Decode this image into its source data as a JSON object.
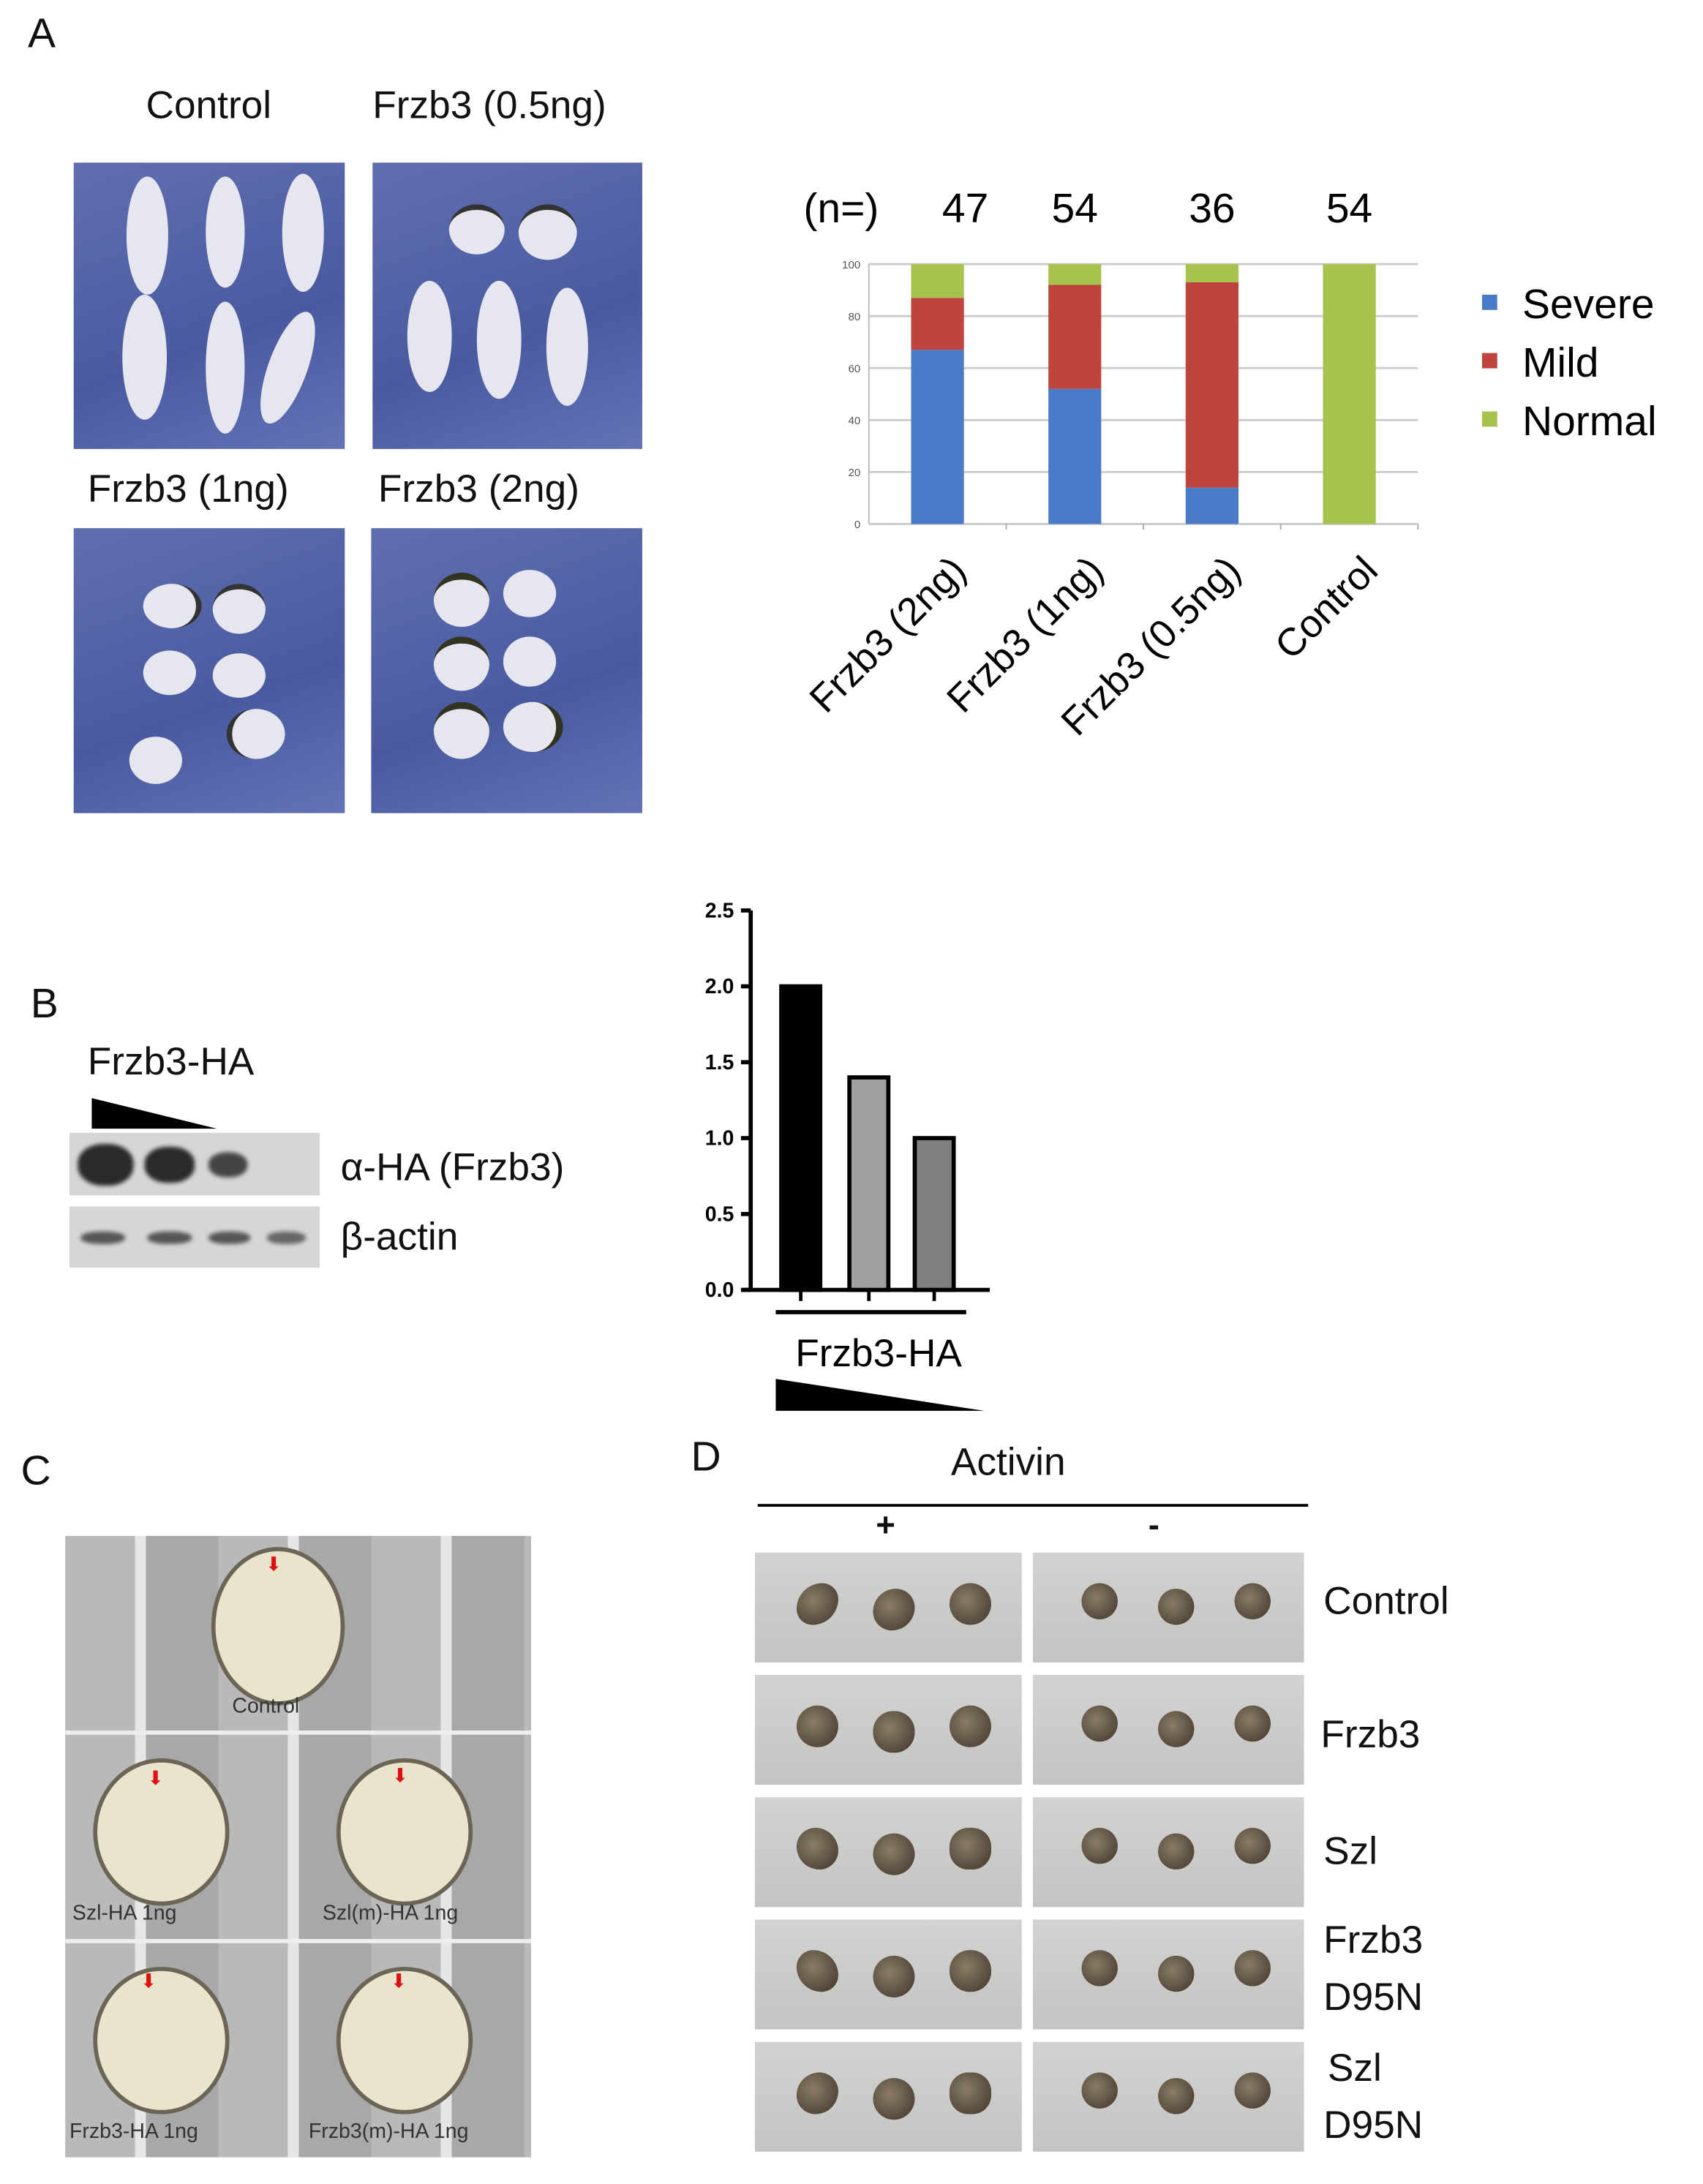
{
  "panels": {
    "a": {
      "letter": "A",
      "photo_labels": [
        "Control",
        "Frzb3 (0.5ng)",
        "Frzb3 (1ng)",
        "Frzb3 (2ng)"
      ]
    },
    "b": {
      "letter": "B",
      "blot_title": "Frzb3-HA",
      "blot_rows": [
        "α-HA (Frzb3)",
        "β-actin"
      ]
    },
    "c": {
      "letter": "C",
      "photo_labels": [
        "Control",
        "Szl-HA 1ng",
        "Szl(m)-HA 1ng",
        "Frzb3-HA 1ng",
        "Frzb3(m)-HA 1ng"
      ]
    },
    "d": {
      "letter": "D",
      "header": "Activin",
      "columns": [
        "+",
        "-"
      ],
      "rows": [
        [
          "Control"
        ],
        [
          "Frzb3"
        ],
        [
          "Szl"
        ],
        [
          "Frzb3",
          "D95N"
        ],
        [
          "Szl",
          "D95N"
        ]
      ]
    }
  },
  "chart_data": [
    {
      "type": "bar",
      "stacked": true,
      "categories": [
        "Frzb3 (2ng)",
        "Frzb3 (1ng)",
        "Frzb3 (0.5ng)",
        "Control"
      ],
      "n_prefix": "(n=)",
      "n_values": [
        "47",
        "54",
        "36",
        "54"
      ],
      "series": [
        {
          "name": "Severe",
          "color": "#4a7bc8",
          "values": [
            67,
            52,
            14,
            0
          ]
        },
        {
          "name": "Mild",
          "color": "#c0443e",
          "values": [
            20,
            40,
            79,
            0
          ]
        },
        {
          "name": "Normal",
          "color": "#a8c24e",
          "values": [
            13,
            8,
            7,
            100
          ]
        }
      ],
      "ylim": [
        0,
        100
      ],
      "yticks": [
        "0",
        "20",
        "40",
        "60",
        "80",
        "100"
      ],
      "grid": true,
      "legend": "right"
    },
    {
      "type": "bar",
      "categories": [
        "",
        "",
        ""
      ],
      "values": [
        2.0,
        1.4,
        1.0
      ],
      "colors": [
        "#000000",
        "#a0a0a0",
        "#808080"
      ],
      "ylim": [
        0,
        2.5
      ],
      "yticks": [
        "0.0",
        "0.5",
        "1.0",
        "1.5",
        "2.0",
        "2.5"
      ],
      "xlabel": "Frzb3-HA",
      "grid": false
    }
  ]
}
